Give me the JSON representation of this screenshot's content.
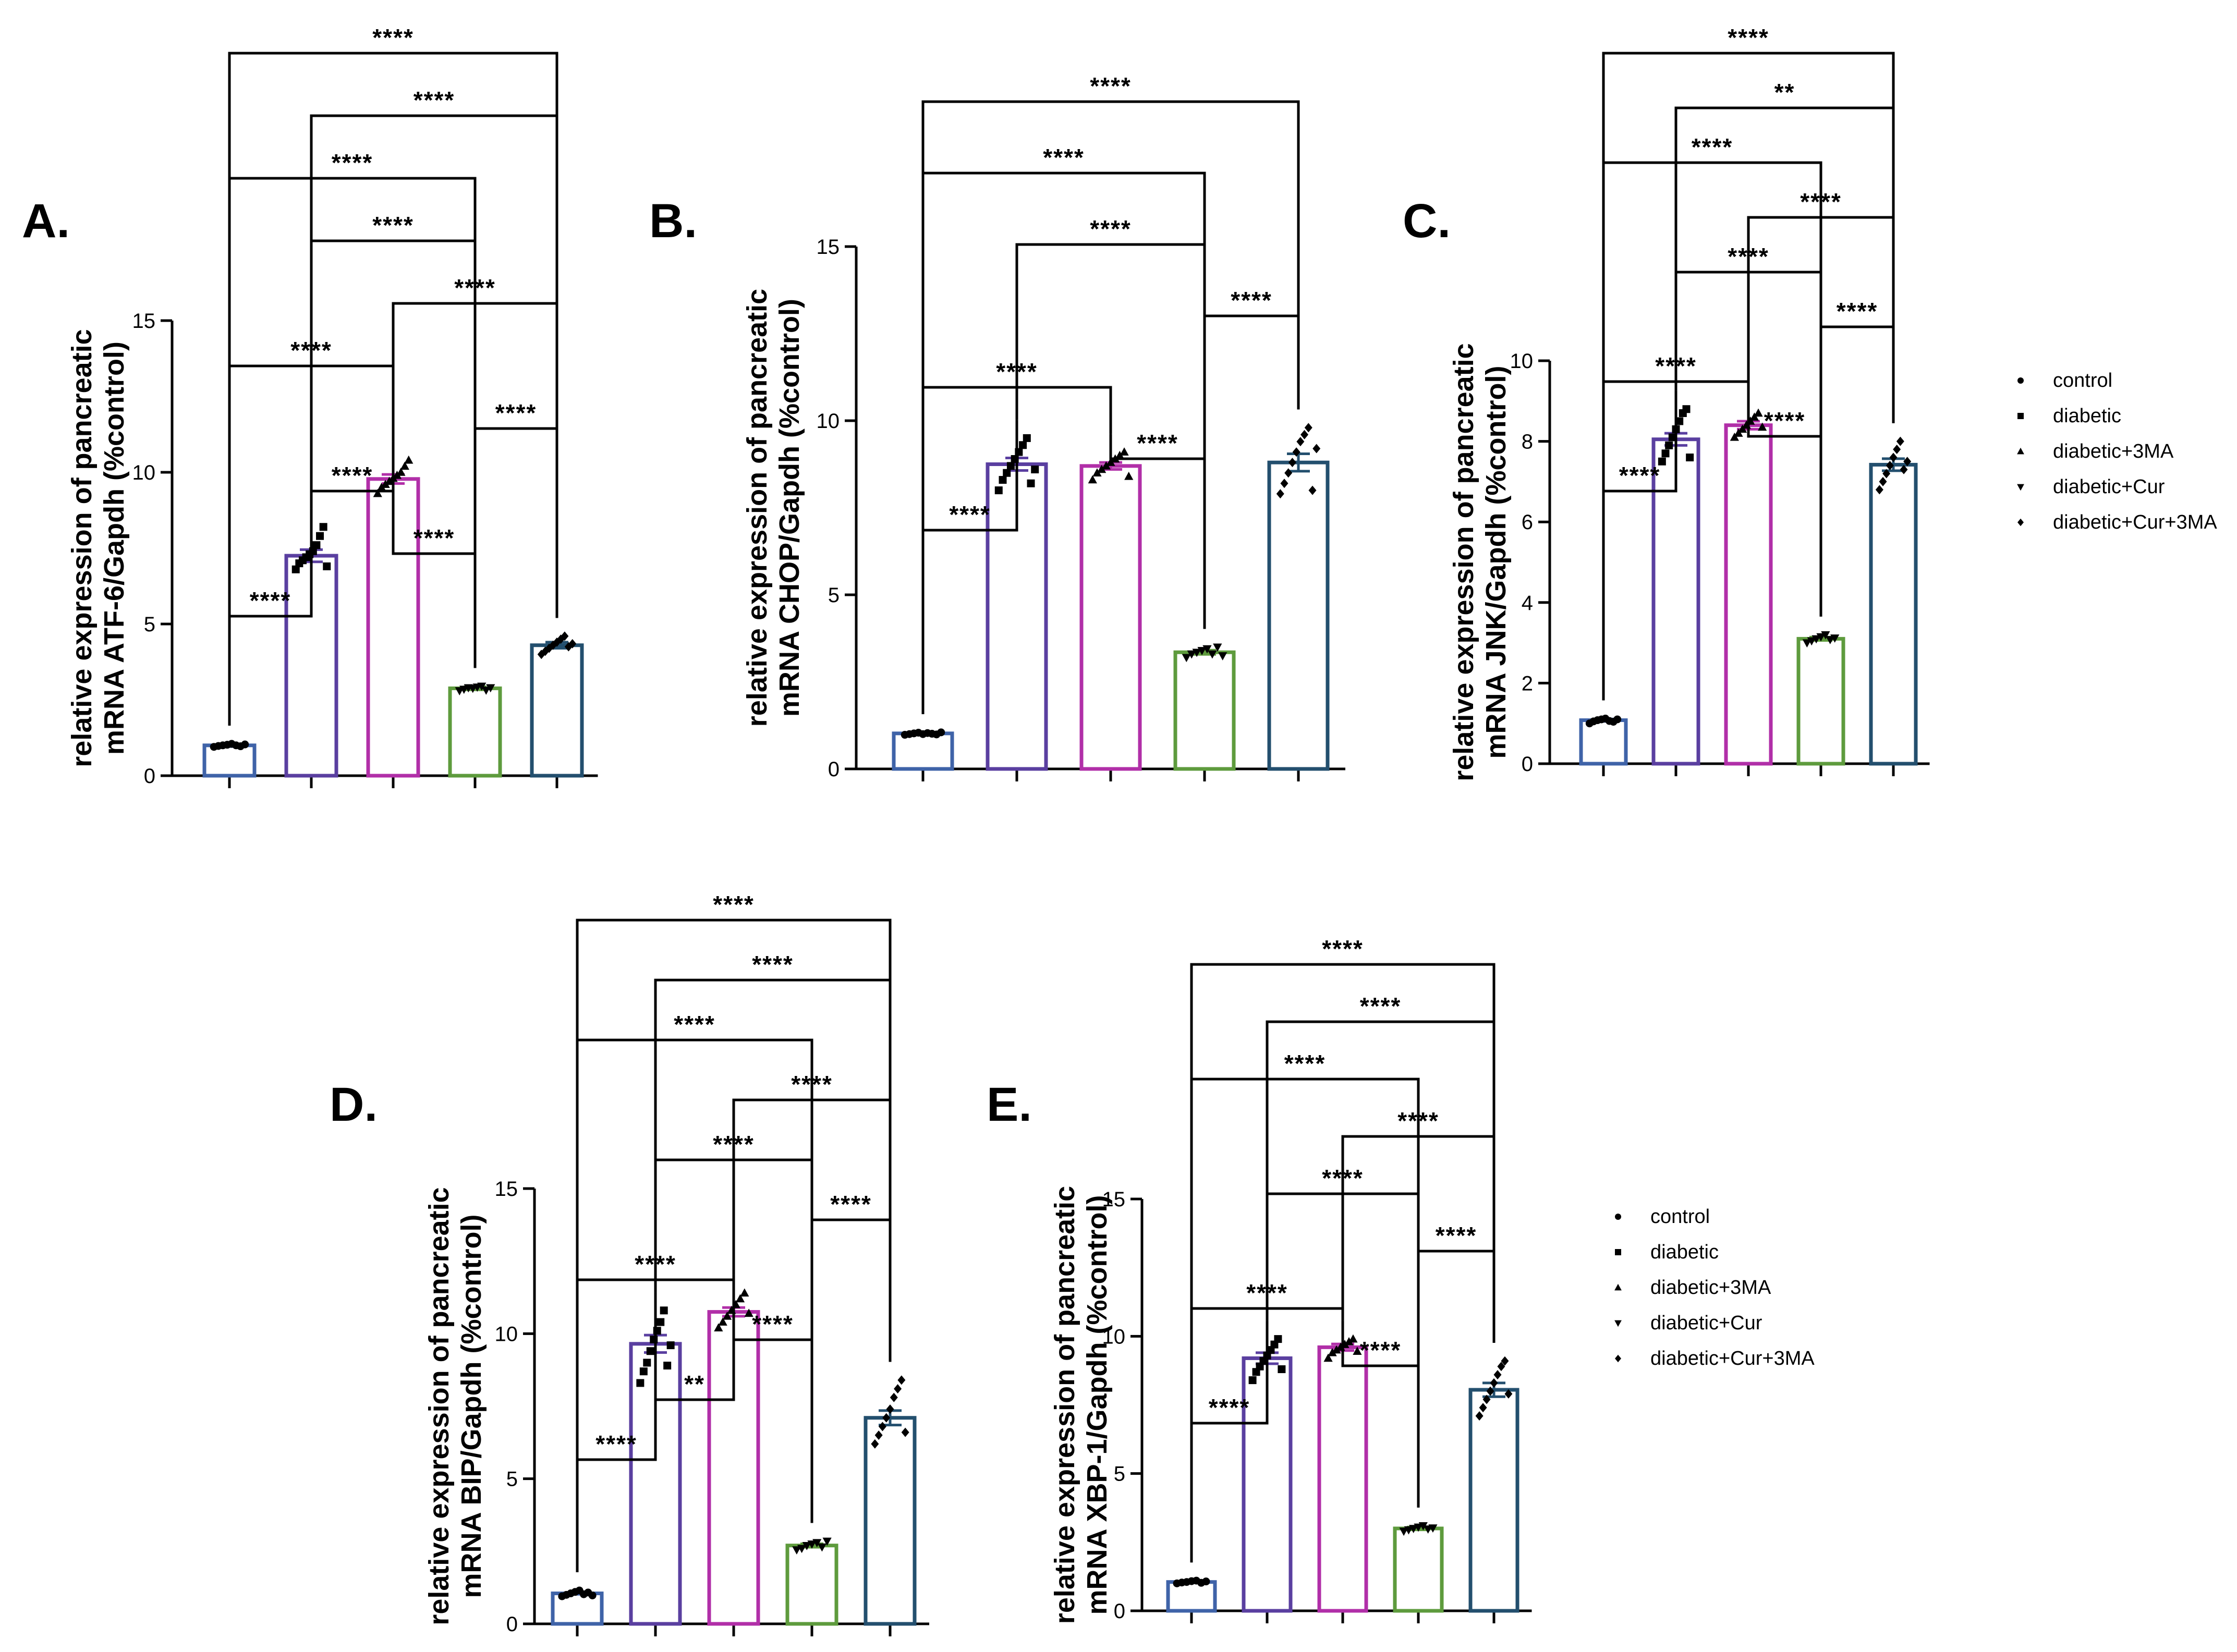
{
  "figure_labels": {
    "group_names": [
      "control",
      "diabetic",
      "diabetic+3MA",
      "diabetic+Cur",
      "diabetic+Cur+3MA"
    ],
    "legend_markers": [
      "circle-marker",
      "square-marker",
      "triangle-up-marker",
      "triangle-down-marker",
      "diamond-marker"
    ]
  },
  "colors": {
    "control": "#3f63a8",
    "diabetic": "#5a3fa0",
    "diabetic+3MA": "#b12fa8",
    "diabetic+Cur": "#5e9b3d",
    "diabetic+Cur+3MA": "#234f6e",
    "axis": "#000000"
  },
  "chart_data": [
    {
      "panel": "A.",
      "type": "bar",
      "categories": [
        "control",
        "diabetic",
        "diabetic+3MA",
        "diabetic+Cur",
        "diabetic+Cur+3MA"
      ],
      "values": [
        1.0,
        7.25,
        9.78,
        2.88,
        4.3
      ],
      "sem": [
        0.04,
        0.2,
        0.15,
        0.05,
        0.1
      ],
      "points": [
        [
          0.95,
          0.98,
          1.0,
          1.02,
          1.05,
          1.0,
          0.97,
          1.03
        ],
        [
          6.8,
          7.0,
          7.1,
          7.2,
          7.3,
          7.4,
          7.6,
          7.9,
          8.2,
          6.9
        ],
        [
          9.3,
          9.5,
          9.6,
          9.7,
          9.8,
          9.9,
          10.0,
          10.2,
          10.4
        ],
        [
          2.8,
          2.85,
          2.9,
          2.88,
          2.92,
          2.95,
          2.82,
          2.9
        ],
        [
          4.0,
          4.1,
          4.2,
          4.3,
          4.4,
          4.5,
          4.6,
          4.25,
          4.35
        ]
      ],
      "xlabel": "",
      "ylabel": "relative expression of pancreatic mRNA ATF-6/Gapdh (%control)",
      "ylim": [
        0,
        15
      ],
      "yticks": [
        0,
        5,
        10,
        15
      ],
      "comparisons": [
        {
          "from": 0,
          "to": 1,
          "label": "****"
        },
        {
          "from": 2,
          "to": 3,
          "label": "****"
        },
        {
          "from": 1,
          "to": 2,
          "label": "****"
        },
        {
          "from": 3,
          "to": 4,
          "label": "****"
        },
        {
          "from": 0,
          "to": 2,
          "label": "****"
        },
        {
          "from": 2,
          "to": 4,
          "label": "****"
        },
        {
          "from": 1,
          "to": 3,
          "label": "****"
        },
        {
          "from": 0,
          "to": 3,
          "label": "****"
        },
        {
          "from": 1,
          "to": 4,
          "label": "****"
        },
        {
          "from": 0,
          "to": 4,
          "label": "****"
        }
      ]
    },
    {
      "panel": "B.",
      "type": "bar",
      "categories": [
        "control",
        "diabetic",
        "diabetic+3MA",
        "diabetic+Cur",
        "diabetic+Cur+3MA"
      ],
      "values": [
        1.02,
        8.75,
        8.7,
        3.35,
        8.8
      ],
      "sem": [
        0.02,
        0.18,
        0.1,
        0.06,
        0.25
      ],
      "points": [
        [
          0.98,
          1.0,
          1.02,
          1.04,
          1.0,
          1.03,
          1.01,
          0.99,
          1.05
        ],
        [
          8.0,
          8.3,
          8.5,
          8.7,
          8.9,
          9.1,
          9.3,
          9.5,
          8.2,
          8.6
        ],
        [
          8.3,
          8.5,
          8.6,
          8.7,
          8.8,
          8.9,
          9.0,
          9.1,
          8.4
        ],
        [
          3.2,
          3.3,
          3.35,
          3.4,
          3.45,
          3.3,
          3.5,
          3.25
        ],
        [
          7.9,
          8.2,
          8.5,
          8.8,
          9.1,
          9.4,
          9.6,
          9.8,
          8.0,
          9.2
        ]
      ],
      "xlabel": "",
      "ylabel": "relative expression of pancreatic mRNA CHOP/Gapdh (%control)",
      "ylim": [
        0,
        15
      ],
      "yticks": [
        0,
        5,
        10,
        15
      ],
      "comparisons": [
        {
          "from": 0,
          "to": 1,
          "label": "****"
        },
        {
          "from": 2,
          "to": 3,
          "label": "****"
        },
        {
          "from": 0,
          "to": 2,
          "label": "****"
        },
        {
          "from": 3,
          "to": 4,
          "label": "****"
        },
        {
          "from": 1,
          "to": 3,
          "label": "****"
        },
        {
          "from": 0,
          "to": 3,
          "label": "****"
        },
        {
          "from": 0,
          "to": 4,
          "label": "****"
        }
      ]
    },
    {
      "panel": "C.",
      "type": "bar",
      "categories": [
        "control",
        "diabetic",
        "diabetic+3MA",
        "diabetic+Cur",
        "diabetic+Cur+3MA"
      ],
      "values": [
        1.08,
        8.05,
        8.4,
        3.1,
        7.42
      ],
      "sem": [
        0.03,
        0.15,
        0.1,
        0.04,
        0.15
      ],
      "points": [
        [
          1.0,
          1.05,
          1.08,
          1.1,
          1.12,
          1.06,
          1.04,
          1.1
        ],
        [
          7.5,
          7.7,
          7.9,
          8.1,
          8.3,
          8.5,
          8.7,
          8.8,
          7.6
        ],
        [
          8.1,
          8.2,
          8.3,
          8.4,
          8.5,
          8.6,
          8.7,
          8.35
        ],
        [
          3.0,
          3.05,
          3.1,
          3.15,
          3.2,
          3.08,
          3.12
        ],
        [
          6.8,
          7.0,
          7.2,
          7.4,
          7.6,
          7.8,
          8.0,
          7.3,
          7.5
        ]
      ],
      "xlabel": "",
      "ylabel": "relative expression of pancreatic mRNA JNK/Gapdh (%control)",
      "ylim": [
        0,
        10
      ],
      "yticks": [
        0,
        2,
        4,
        6,
        8,
        10
      ],
      "comparisons": [
        {
          "from": 0,
          "to": 1,
          "label": "****"
        },
        {
          "from": 2,
          "to": 3,
          "label": "****"
        },
        {
          "from": 0,
          "to": 2,
          "label": "****"
        },
        {
          "from": 3,
          "to": 4,
          "label": "****"
        },
        {
          "from": 1,
          "to": 3,
          "label": "****"
        },
        {
          "from": 2,
          "to": 4,
          "label": "****"
        },
        {
          "from": 0,
          "to": 3,
          "label": "****"
        },
        {
          "from": 1,
          "to": 4,
          "label": "**"
        },
        {
          "from": 0,
          "to": 4,
          "label": "****"
        }
      ]
    },
    {
      "panel": "D.",
      "type": "bar",
      "categories": [
        "control",
        "diabetic",
        "diabetic+3MA",
        "diabetic+Cur",
        "diabetic+Cur+3MA"
      ],
      "values": [
        1.05,
        9.65,
        10.75,
        2.7,
        7.1
      ],
      "sem": [
        0.03,
        0.3,
        0.15,
        0.06,
        0.25
      ],
      "points": [
        [
          0.95,
          1.0,
          1.05,
          1.1,
          1.15,
          1.02,
          1.08,
          0.98
        ],
        [
          8.3,
          8.7,
          9.0,
          9.4,
          9.8,
          10.1,
          10.4,
          10.8,
          8.9,
          9.6
        ],
        [
          10.2,
          10.4,
          10.6,
          10.8,
          11.0,
          11.2,
          11.4,
          10.7
        ],
        [
          2.55,
          2.6,
          2.7,
          2.75,
          2.8,
          2.65,
          2.85
        ],
        [
          6.2,
          6.5,
          6.8,
          7.1,
          7.4,
          7.8,
          8.1,
          8.4,
          6.6
        ]
      ],
      "xlabel": "",
      "ylabel": "relative expression of pancreatic mRNA BIP/Gapdh (%control)",
      "ylim": [
        0,
        15
      ],
      "yticks": [
        0,
        5,
        10,
        15
      ],
      "comparisons": [
        {
          "from": 0,
          "to": 1,
          "label": "****"
        },
        {
          "from": 1,
          "to": 2,
          "label": "**"
        },
        {
          "from": 2,
          "to": 3,
          "label": "****"
        },
        {
          "from": 0,
          "to": 2,
          "label": "****"
        },
        {
          "from": 3,
          "to": 4,
          "label": "****"
        },
        {
          "from": 1,
          "to": 3,
          "label": "****"
        },
        {
          "from": 2,
          "to": 4,
          "label": "****"
        },
        {
          "from": 0,
          "to": 3,
          "label": "****"
        },
        {
          "from": 1,
          "to": 4,
          "label": "****"
        },
        {
          "from": 0,
          "to": 4,
          "label": "****"
        }
      ]
    },
    {
      "panel": "E.",
      "type": "bar",
      "categories": [
        "control",
        "diabetic",
        "diabetic+3MA",
        "diabetic+Cur",
        "diabetic+Cur+3MA"
      ],
      "values": [
        1.05,
        9.2,
        9.6,
        3.0,
        8.05
      ],
      "sem": [
        0.03,
        0.2,
        0.12,
        0.05,
        0.25
      ],
      "points": [
        [
          1.0,
          1.03,
          1.05,
          1.08,
          1.1,
          1.02,
          1.07
        ],
        [
          8.4,
          8.7,
          8.9,
          9.1,
          9.3,
          9.5,
          9.7,
          9.9,
          8.8
        ],
        [
          9.2,
          9.4,
          9.5,
          9.6,
          9.7,
          9.8,
          9.9,
          9.45
        ],
        [
          2.9,
          2.95,
          3.0,
          3.05,
          3.1,
          2.98,
          3.02
        ],
        [
          7.1,
          7.4,
          7.7,
          8.0,
          8.3,
          8.6,
          8.9,
          9.1,
          7.9
        ]
      ],
      "xlabel": "",
      "ylabel": "relative expression of pancreatic mRNA XBP-1/Gapdh (%control)",
      "ylim": [
        0,
        15
      ],
      "yticks": [
        0,
        5,
        10,
        15
      ],
      "comparisons": [
        {
          "from": 0,
          "to": 1,
          "label": "****"
        },
        {
          "from": 2,
          "to": 3,
          "label": "****"
        },
        {
          "from": 0,
          "to": 2,
          "label": "****"
        },
        {
          "from": 3,
          "to": 4,
          "label": "****"
        },
        {
          "from": 1,
          "to": 3,
          "label": "****"
        },
        {
          "from": 2,
          "to": 4,
          "label": "****"
        },
        {
          "from": 0,
          "to": 3,
          "label": "****"
        },
        {
          "from": 1,
          "to": 4,
          "label": "****"
        },
        {
          "from": 0,
          "to": 4,
          "label": "****"
        }
      ]
    }
  ]
}
